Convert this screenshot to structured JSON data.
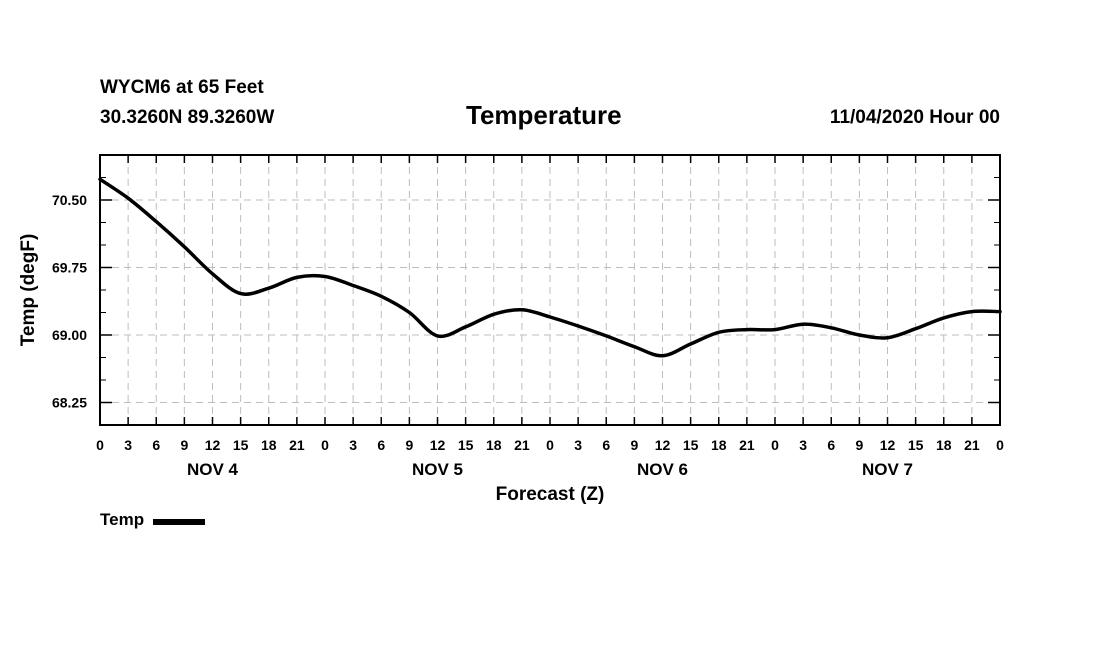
{
  "header": {
    "station": "WYCM6 at 65 Feet",
    "coords": "30.3260N 89.3260W",
    "title": "Temperature",
    "run": "11/04/2020 Hour 00"
  },
  "chart_data": {
    "type": "line",
    "title": "Temperature",
    "xlabel": "Forecast (Z)",
    "ylabel": "Temp (degF)",
    "ylim": [
      68.0,
      71.0
    ],
    "yticks": [
      "70.50",
      "69.75",
      "69.00",
      "68.25"
    ],
    "yticks_values": [
      70.5,
      69.75,
      69.0,
      68.25
    ],
    "xlim_hours": [
      0,
      96
    ],
    "xtick_labels": [
      "0",
      "3",
      "6",
      "9",
      "12",
      "15",
      "18",
      "21",
      "0",
      "3",
      "6",
      "9",
      "12",
      "15",
      "18",
      "21",
      "0",
      "3",
      "6",
      "9",
      "12",
      "15",
      "18",
      "21",
      "0",
      "3",
      "6",
      "9",
      "12",
      "15",
      "18",
      "21",
      "0"
    ],
    "day_labels": [
      {
        "label": "NOV 4",
        "hour": 12
      },
      {
        "label": "NOV 5",
        "hour": 36
      },
      {
        "label": "NOV 6",
        "hour": 60
      },
      {
        "label": "NOV 7",
        "hour": 84
      }
    ],
    "grid": true,
    "legend_position": "bottom-left",
    "series": [
      {
        "name": "Temp",
        "color": "#000000",
        "x": [
          0,
          3,
          6,
          9,
          12,
          15,
          18,
          21,
          24,
          27,
          30,
          33,
          36,
          39,
          42,
          45,
          48,
          51,
          54,
          57,
          60,
          63,
          66,
          69,
          72,
          75,
          78,
          81,
          84,
          87,
          90,
          93,
          96
        ],
        "y": [
          70.73,
          70.52,
          70.26,
          69.98,
          69.68,
          69.46,
          69.52,
          69.64,
          69.65,
          69.55,
          69.43,
          69.25,
          68.99,
          69.09,
          69.23,
          69.28,
          69.2,
          69.1,
          68.99,
          68.87,
          68.77,
          68.9,
          69.03,
          69.06,
          69.06,
          69.12,
          69.08,
          69.0,
          68.97,
          69.07,
          69.19,
          69.26,
          69.26
        ]
      }
    ]
  },
  "legend": {
    "label": "Temp"
  }
}
